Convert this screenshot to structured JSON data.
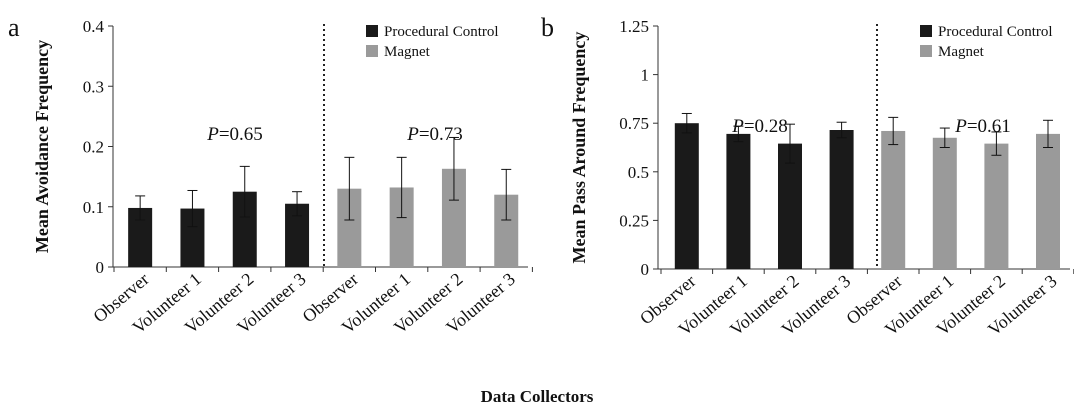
{
  "figure": {
    "x_label": "Data Collectors"
  },
  "colors": {
    "procedural_control": "#1a1a1a",
    "magnet": "#9a9a9a",
    "axis": "#333333"
  },
  "chart_data": [
    {
      "type": "bar",
      "panel_label": "a",
      "ylabel": "Mean Avoidance Frequency",
      "ylim": [
        0,
        0.4
      ],
      "yticks": [
        0,
        0.1,
        0.2,
        0.3,
        0.4
      ],
      "ytick_labels": [
        "0",
        "0.1",
        "0.2",
        "0.3",
        "0.4"
      ],
      "categories": [
        "Observer",
        "Volunteer 1",
        "Volunteer 2",
        "Volunteer 3"
      ],
      "legend_position": "top-right",
      "series": [
        {
          "name": "Procedural Control",
          "values": [
            0.098,
            0.097,
            0.125,
            0.105
          ],
          "errors": [
            0.02,
            0.03,
            0.042,
            0.02
          ],
          "p_prefix": "P",
          "p_value": "=0.65"
        },
        {
          "name": "Magnet",
          "values": [
            0.13,
            0.132,
            0.163,
            0.12
          ],
          "errors": [
            0.052,
            0.05,
            0.052,
            0.042
          ],
          "p_prefix": "P",
          "p_value": "=0.73"
        }
      ]
    },
    {
      "type": "bar",
      "panel_label": "b",
      "ylabel": "Mean Pass Around Frequency",
      "ylim": [
        0,
        1.25
      ],
      "yticks": [
        0,
        0.25,
        0.5,
        0.75,
        1,
        1.25
      ],
      "ytick_labels": [
        "0",
        "0.25",
        "0.5",
        "0.75",
        "1",
        "1.25"
      ],
      "categories": [
        "Observer",
        "Volunteer 1",
        "Volunteer 2",
        "Volunteer 3"
      ],
      "legend_position": "top-right",
      "series": [
        {
          "name": "Procedural Control",
          "values": [
            0.75,
            0.695,
            0.645,
            0.715
          ],
          "errors": [
            0.05,
            0.04,
            0.1,
            0.04
          ],
          "p_prefix": "P",
          "p_value": "=0.28"
        },
        {
          "name": "Magnet",
          "values": [
            0.71,
            0.675,
            0.645,
            0.695
          ],
          "errors": [
            0.07,
            0.05,
            0.06,
            0.07
          ],
          "p_prefix": "P",
          "p_value": "=0.61"
        }
      ]
    }
  ]
}
